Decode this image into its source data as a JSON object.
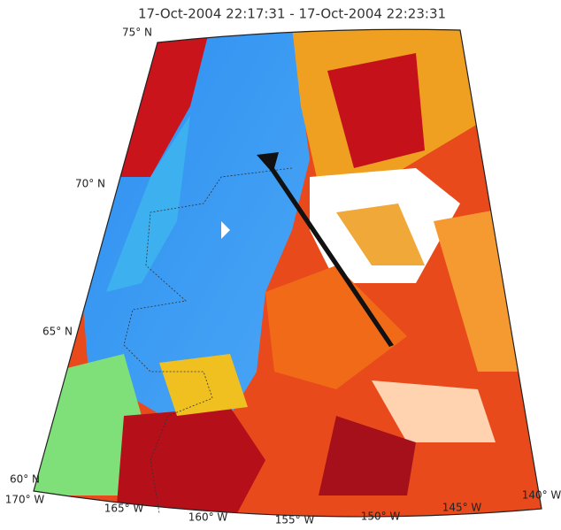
{
  "title": "17-Oct-2004 22:17:31 - 17-Oct-2004 22:23:31",
  "lat_labels": [
    "75° N",
    "70° N",
    "65° N",
    "60° N"
  ],
  "lon_labels": [
    "170° W",
    "165° W",
    "160° W",
    "155° W",
    "150° W",
    "145° W",
    "140° W"
  ]
}
